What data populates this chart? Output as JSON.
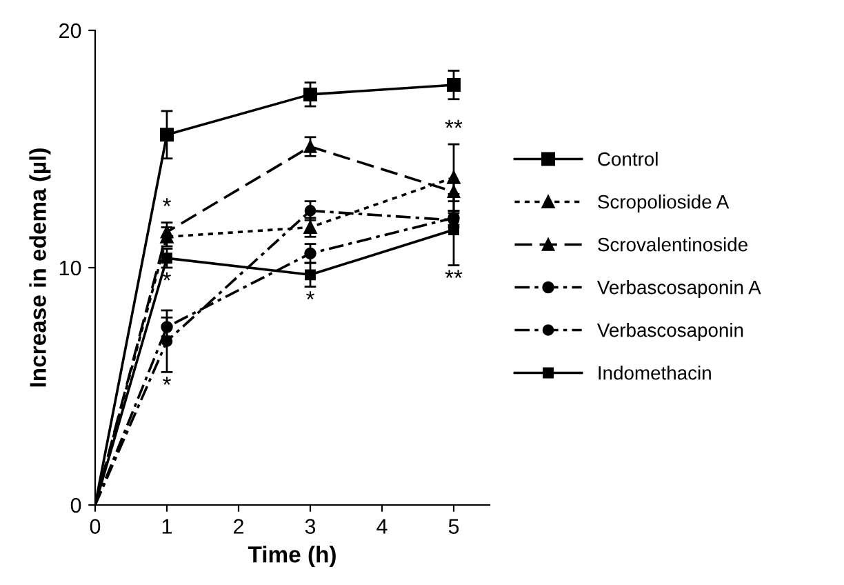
{
  "chart_data": {
    "type": "line",
    "xlabel": "Time (h)",
    "ylabel": "Increase in edema (µl)",
    "x": [
      0,
      1,
      3,
      5
    ],
    "xlim": [
      0,
      5.5
    ],
    "xticks": [
      0,
      1,
      2,
      3,
      4,
      5
    ],
    "ylim": [
      0,
      20
    ],
    "yticks": [
      0,
      10,
      20
    ],
    "grid": false,
    "legend": "right",
    "series": [
      {
        "name": "Control",
        "color": "#000000",
        "marker": "square",
        "line_style": "solid",
        "values": [
          0,
          15.6,
          17.3,
          17.7
        ],
        "errors": [
          null,
          1.0,
          0.5,
          0.6
        ]
      },
      {
        "name": "Scropolioside A",
        "color": "#000000",
        "marker": "triangle",
        "line_style": "dotted",
        "values": [
          0,
          11.3,
          11.7,
          13.8
        ],
        "errors": [
          null,
          0.4,
          0.4,
          1.4
        ]
      },
      {
        "name": "Scrovalentinoside",
        "color": "#000000",
        "marker": "triangle",
        "line_style": "dashed",
        "values": [
          0,
          11.5,
          15.1,
          13.2
        ],
        "errors": [
          null,
          0.4,
          0.4,
          0.4
        ]
      },
      {
        "name": "Verbascosaponin A",
        "color": "#000000",
        "marker": "circle",
        "line_style": "dashdot",
        "values": [
          0,
          7.5,
          10.6,
          12.1
        ],
        "errors": [
          null,
          0.4,
          0.4,
          0.3
        ]
      },
      {
        "name": "Verbascosaponin",
        "color": "#000000",
        "marker": "circle",
        "line_style": "dashdot",
        "values": [
          0,
          6.9,
          12.4,
          12.0
        ],
        "errors": [
          null,
          1.3,
          0.4,
          0.3
        ]
      },
      {
        "name": "Indomethacin",
        "color": "#000000",
        "marker": "square",
        "line_style": "solid",
        "values": [
          0,
          10.4,
          9.7,
          11.6
        ],
        "errors": [
          null,
          0.4,
          0.5,
          1.5
        ]
      }
    ],
    "annotations": [
      {
        "text": "*",
        "x": 1,
        "y": 11.9
      },
      {
        "text": "*",
        "x": 1,
        "y": 10.0
      },
      {
        "text": "*",
        "x": 1,
        "y": 5.6
      },
      {
        "text": "*",
        "x": 3,
        "y": 9.2
      },
      {
        "text": "**",
        "x": 5,
        "y": 15.2
      },
      {
        "text": "**",
        "x": 5,
        "y": 10.1
      }
    ]
  }
}
